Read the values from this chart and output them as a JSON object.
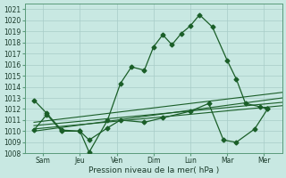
{
  "xlabel": "Pression niveau de la mer( hPa )",
  "bg_color": "#c8e8e2",
  "grid_color": "#a8ccc8",
  "line_color": "#1a5e28",
  "ylim": [
    1008,
    1021.5
  ],
  "xlim": [
    0.0,
    14.0
  ],
  "xtick_positions": [
    1.0,
    3.0,
    5.0,
    7.0,
    9.0,
    11.0,
    13.0
  ],
  "xtick_labels": [
    "Sam",
    "Jeu",
    "Ven",
    "Dim",
    "Lun",
    "Mar",
    "Mer"
  ],
  "ytick_values": [
    1008,
    1009,
    1010,
    1011,
    1012,
    1013,
    1014,
    1015,
    1016,
    1017,
    1018,
    1019,
    1020,
    1021
  ],
  "main_x": [
    0.5,
    1.2,
    2.0,
    3.0,
    3.5,
    4.5,
    5.2,
    5.8,
    6.5,
    7.0,
    7.5,
    8.0,
    8.5,
    9.0,
    9.5,
    10.2,
    11.0,
    11.5,
    12.0,
    12.8,
    13.2
  ],
  "main_y": [
    1012.8,
    1011.6,
    1010.1,
    1010.0,
    1008.1,
    1011.0,
    1014.3,
    1015.8,
    1015.5,
    1017.6,
    1018.7,
    1017.8,
    1018.8,
    1019.5,
    1020.5,
    1019.4,
    1016.4,
    1014.7,
    1012.5,
    1012.2,
    1012.0
  ],
  "trend1_x": [
    0.5,
    14.0
  ],
  "trend1_y": [
    1010.2,
    1012.3
  ],
  "trend2_x": [
    0.5,
    14.0
  ],
  "trend2_y": [
    1010.5,
    1012.6
  ],
  "trend3_x": [
    0.5,
    14.0
  ],
  "trend3_y": [
    1010.0,
    1013.0
  ],
  "trend4_x": [
    0.5,
    14.0
  ],
  "trend4_y": [
    1010.8,
    1013.5
  ],
  "line2_x": [
    0.5,
    1.2,
    2.0,
    3.0,
    3.5,
    4.5,
    5.2,
    6.5,
    7.5,
    9.0,
    10.0,
    10.8,
    11.5,
    12.5,
    13.2
  ],
  "line2_y": [
    1010.1,
    1011.5,
    1010.0,
    1010.0,
    1009.2,
    1010.3,
    1011.0,
    1010.8,
    1011.2,
    1011.8,
    1012.5,
    1009.2,
    1009.0,
    1010.2,
    1012.0
  ]
}
